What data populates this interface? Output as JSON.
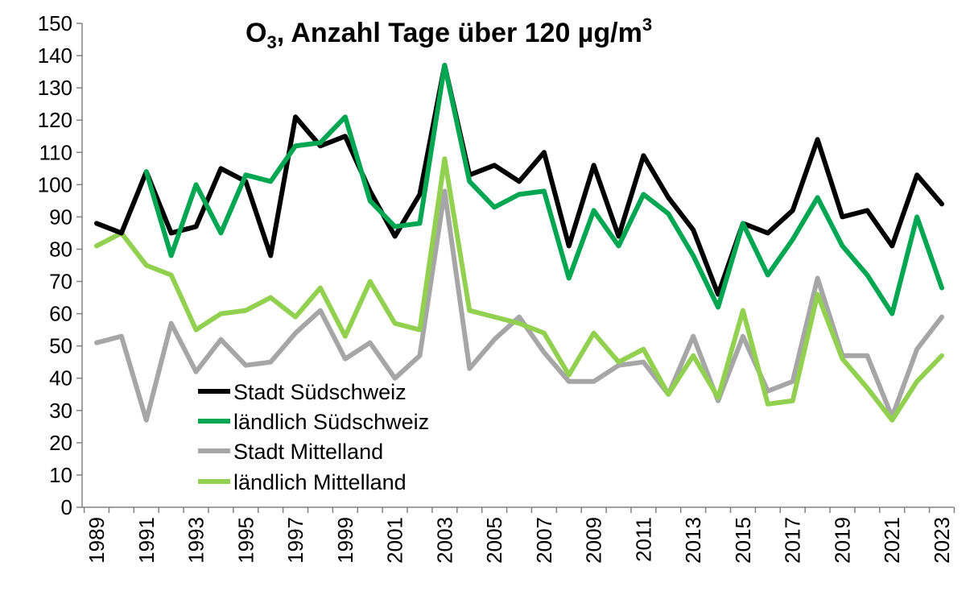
{
  "chart_data": {
    "type": "line",
    "title": "O3, Anzahl Tage über 120 µg/m3",
    "title_parts": {
      "main": "O",
      "sub": "3",
      "rest": ", Anzahl Tage über 120 µg/m",
      "sup": "3"
    },
    "xlabel": "",
    "ylabel": "",
    "ylim": [
      0,
      150
    ],
    "yticks": [
      "0",
      "10",
      "20",
      "30",
      "40",
      "50",
      "60",
      "70",
      "80",
      "90",
      "100",
      "110",
      "120",
      "130",
      "140",
      "150"
    ],
    "x": [
      1989,
      1990,
      1991,
      1992,
      1993,
      1994,
      1995,
      1996,
      1997,
      1998,
      1999,
      2000,
      2001,
      2002,
      2003,
      2004,
      2005,
      2006,
      2007,
      2008,
      2009,
      2010,
      2011,
      2012,
      2013,
      2014,
      2015,
      2016,
      2017,
      2018,
      2019,
      2020,
      2021,
      2022,
      2023
    ],
    "xtick_labels": [
      "1989",
      "1991",
      "1993",
      "1995",
      "1997",
      "1999",
      "2001",
      "2003",
      "2005",
      "2007",
      "2009",
      "2011",
      "2013",
      "2015",
      "2017",
      "2019",
      "2021",
      "2023"
    ],
    "grid": false,
    "legend_position": "bottom-left",
    "series": [
      {
        "name": "Stadt Südschweiz",
        "color": "#000000",
        "values": [
          88,
          85,
          104,
          85,
          87,
          105,
          101,
          78,
          121,
          112,
          115,
          98,
          84,
          97,
          137,
          103,
          106,
          101,
          110,
          81,
          106,
          84,
          109,
          96,
          86,
          66,
          88,
          85,
          92,
          114,
          90,
          92,
          81,
          103,
          94
        ]
      },
      {
        "name": "ländlich Südschweiz",
        "color": "#00A651",
        "values": [
          null,
          null,
          104,
          78,
          100,
          85,
          103,
          101,
          112,
          113,
          121,
          95,
          87,
          88,
          137,
          101,
          93,
          97,
          98,
          71,
          92,
          81,
          97,
          91,
          78,
          62,
          88,
          72,
          83,
          96,
          81,
          72,
          60,
          90,
          68
        ]
      },
      {
        "name": "Stadt Mittelland",
        "color": "#A6A6A6",
        "values": [
          51,
          53,
          27,
          57,
          42,
          52,
          44,
          45,
          54,
          61,
          46,
          51,
          40,
          47,
          98,
          43,
          52,
          59,
          48,
          39,
          39,
          44,
          45,
          35,
          53,
          33,
          53,
          36,
          39,
          71,
          47,
          47,
          28,
          49,
          59
        ]
      },
      {
        "name": "ländlich Mittelland",
        "color": "#92D050",
        "values": [
          81,
          85,
          75,
          72,
          55,
          60,
          61,
          65,
          59,
          68,
          53,
          70,
          57,
          55,
          108,
          61,
          59,
          57,
          54,
          41,
          54,
          45,
          49,
          35,
          47,
          34,
          61,
          32,
          33,
          66,
          46,
          37,
          27,
          39,
          47
        ]
      }
    ]
  }
}
